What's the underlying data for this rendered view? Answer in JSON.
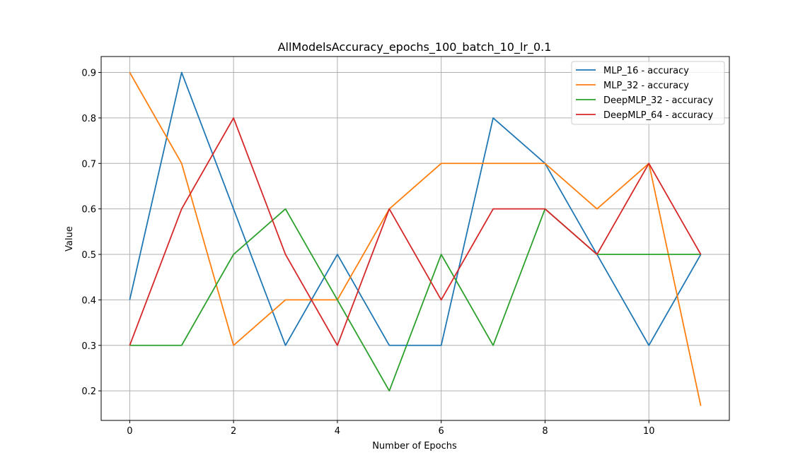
{
  "chart_data": {
    "type": "line",
    "title": "AllModelsAccuracy_epochs_100_batch_10_lr_0.1",
    "xlabel": "Number of Epochs",
    "ylabel": "Value",
    "x": [
      0,
      1,
      2,
      3,
      4,
      5,
      6,
      7,
      8,
      9,
      10,
      11
    ],
    "xlim": [
      -0.55,
      11.55
    ],
    "ylim": [
      0.135,
      0.935
    ],
    "xticks": [
      0,
      2,
      4,
      6,
      8,
      10
    ],
    "yticks": [
      0.2,
      0.3,
      0.4,
      0.5,
      0.6,
      0.7,
      0.8,
      0.9
    ],
    "grid": true,
    "legend_position": "top-right",
    "series": [
      {
        "name": "MLP_16 - accuracy",
        "color": "#1f77b4",
        "values": [
          0.4,
          0.9,
          0.6,
          0.3,
          0.5,
          0.3,
          0.3,
          0.8,
          0.7,
          0.5,
          0.3,
          0.5
        ]
      },
      {
        "name": "MLP_32 - accuracy",
        "color": "#ff7f0e",
        "values": [
          0.9,
          0.7,
          0.3,
          0.4,
          0.4,
          0.6,
          0.7,
          0.7,
          0.7,
          0.6,
          0.7,
          0.167
        ]
      },
      {
        "name": "DeepMLP_32 - accuracy",
        "color": "#2ca02c",
        "values": [
          0.3,
          0.3,
          0.5,
          0.6,
          0.4,
          0.2,
          0.5,
          0.3,
          0.6,
          0.5,
          0.5,
          0.5
        ]
      },
      {
        "name": "DeepMLP_64 - accuracy",
        "color": "#d62728",
        "values": [
          0.3,
          0.6,
          0.8,
          0.5,
          0.3,
          0.6,
          0.4,
          0.6,
          0.6,
          0.5,
          0.7,
          0.5
        ]
      }
    ]
  }
}
